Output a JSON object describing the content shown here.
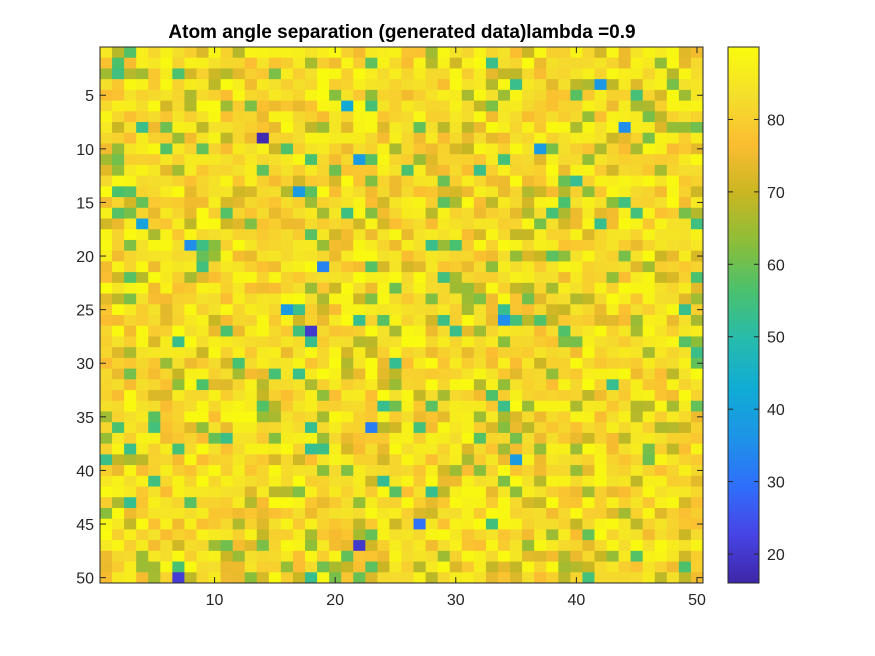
{
  "chart_data": {
    "type": "heatmap",
    "title": "Atom angle separation (generated data)lambda =0.9",
    "xlabel": "",
    "ylabel": "",
    "rows": 50,
    "cols": 50,
    "xlim": [
      0.5,
      50.5
    ],
    "ylim": [
      0.5,
      50.5
    ],
    "y_direction": "reverse",
    "x_ticks": [
      10,
      20,
      30,
      40,
      50
    ],
    "y_ticks": [
      5,
      10,
      15,
      20,
      25,
      30,
      35,
      40,
      45,
      50
    ],
    "x_tick_labels": [
      "10",
      "20",
      "30",
      "40",
      "50"
    ],
    "y_tick_labels": [
      "5",
      "10",
      "15",
      "20",
      "25",
      "30",
      "35",
      "40",
      "45",
      "50"
    ],
    "colorbar": {
      "clim": [
        16,
        90
      ],
      "ticks": [
        20,
        30,
        40,
        50,
        60,
        70,
        80
      ],
      "tick_labels": [
        "20",
        "30",
        "40",
        "50",
        "60",
        "70",
        "80"
      ],
      "colormap": "parula",
      "colormap_stops": [
        "#3E26A8",
        "#4744E5",
        "#2F6FFB",
        "#1D94E6",
        "#10ACD4",
        "#27BBAC",
        "#4AC16D",
        "#8CBE39",
        "#C9B623",
        "#FBBD31",
        "#F4DF2B",
        "#F9FB0E"
      ]
    },
    "value_summary": {
      "min": 16,
      "max": 90,
      "typical_range": [
        72,
        90
      ]
    },
    "notable_low_cells": [
      {
        "row": 9,
        "col": 14,
        "value": 17
      },
      {
        "row": 27,
        "col": 18,
        "value": 20
      },
      {
        "row": 47,
        "col": 22,
        "value": 20
      },
      {
        "row": 50,
        "col": 7,
        "value": 21
      },
      {
        "row": 10,
        "col": 37,
        "value": 38
      },
      {
        "row": 36,
        "col": 23,
        "value": 32
      },
      {
        "row": 45,
        "col": 27,
        "value": 30
      },
      {
        "row": 21,
        "col": 19,
        "value": 33
      },
      {
        "row": 4,
        "col": 42,
        "value": 37
      },
      {
        "row": 8,
        "col": 44,
        "value": 35
      },
      {
        "row": 19,
        "col": 8,
        "value": 35
      },
      {
        "row": 26,
        "col": 34,
        "value": 35
      },
      {
        "row": 25,
        "col": 16,
        "value": 38
      },
      {
        "row": 11,
        "col": 22,
        "value": 38
      },
      {
        "row": 14,
        "col": 17,
        "value": 38
      },
      {
        "row": 39,
        "col": 35,
        "value": 38
      },
      {
        "row": 17,
        "col": 4,
        "value": 40
      },
      {
        "row": 6,
        "col": 21,
        "value": 42
      }
    ]
  }
}
